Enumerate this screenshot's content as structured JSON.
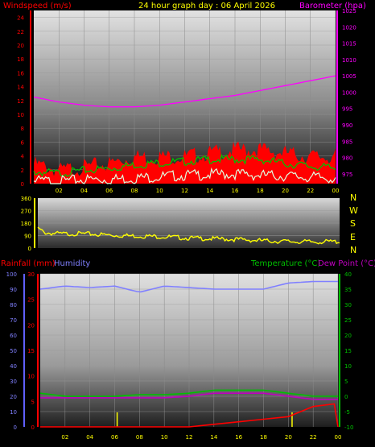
{
  "header": {
    "left_label": "Windspeed (m/s)",
    "title": "24 hour graph day : 06 April 2026",
    "right_label": "Barometer (hpa)"
  },
  "colors": {
    "wind": "#ff0000",
    "gust_fill": "#ff0000",
    "wind_avg": "#00c000",
    "wind_low": "#e0ffe0",
    "baro": "#ff00ff",
    "dir": "#ffff00",
    "rain": "#ff0000",
    "humidity": "#8080ff",
    "temp": "#00c000",
    "dew": "#c000c0",
    "rainrate": "#ffff00"
  },
  "compass": [
    "N",
    "W",
    "S",
    "E",
    "N"
  ],
  "bottom_labels": {
    "rainfall": "Rainfall (mm)",
    "humidity": "Humidity",
    "temperature": "Temperature (°C)",
    "dewpoint": "Dew Point (°C)"
  },
  "chart_data": [
    {
      "type": "line",
      "panel": "wind-baro",
      "x_ticks": [
        "02",
        "04",
        "06",
        "08",
        "10",
        "12",
        "14",
        "16",
        "18",
        "20",
        "22",
        "00"
      ],
      "y_ticks": [
        "0",
        "2",
        "4",
        "6",
        "8",
        "10",
        "12",
        "14",
        "16",
        "18",
        "20",
        "22",
        "24"
      ],
      "ylim": [
        0,
        25
      ],
      "y2_ticks": [
        "975",
        "980",
        "985",
        "990",
        "995",
        "1000",
        "1005",
        "1010",
        "1015",
        "1020",
        "1025"
      ],
      "y2lim": [
        972,
        1025
      ],
      "series": [
        {
          "name": "Windspeed (m/s)",
          "x": [
            0,
            2,
            4,
            6,
            8,
            10,
            12,
            14,
            16,
            18,
            20,
            22,
            24
          ],
          "values": [
            3.5,
            2.5,
            3,
            3.5,
            4.5,
            4.5,
            4.5,
            5,
            5.5,
            5.5,
            5,
            4.5,
            4.5
          ]
        },
        {
          "x": [
            0,
            2,
            4,
            6,
            8,
            10,
            12,
            14,
            16,
            18,
            20,
            22,
            24
          ],
          "values": [
            2,
            1.8,
            2.2,
            2.5,
            3,
            3.3,
            3.5,
            3.8,
            3.8,
            3.8,
            3.2,
            2.8,
            2.5
          ]
        },
        {
          "x": [
            0,
            2,
            4,
            6,
            8,
            10,
            12,
            14,
            16,
            18,
            20,
            22,
            24
          ],
          "values": [
            0.8,
            0.7,
            1,
            1,
            1.2,
            1.4,
            1.6,
            1.7,
            1.8,
            1.6,
            1.5,
            1.3,
            1.2
          ]
        },
        {
          "name": "Barometer (hpa)",
          "x": [
            0,
            2,
            4,
            6,
            8,
            10,
            12,
            14,
            16,
            18,
            20,
            22,
            24
          ],
          "values": [
            998.5,
            997,
            996,
            995.5,
            995.5,
            996,
            997,
            998,
            999,
            1000.5,
            1002,
            1003.5,
            1005
          ]
        }
      ]
    },
    {
      "type": "scatter",
      "panel": "wind-direction",
      "y_ticks": [
        "0",
        "90",
        "180",
        "270",
        "360"
      ],
      "ylim": [
        0,
        360
      ],
      "series": [
        {
          "x": [
            0,
            0.5,
            1,
            2,
            3,
            4,
            5,
            6,
            8,
            10,
            12,
            14,
            16,
            18,
            20,
            22,
            24
          ],
          "values": [
            150,
            120,
            115,
            110,
            112,
            110,
            105,
            100,
            95,
            90,
            80,
            75,
            70,
            60,
            55,
            52,
            55
          ]
        }
      ]
    },
    {
      "type": "line",
      "panel": "rain-humidity-temp",
      "x_ticks": [
        "02",
        "04",
        "06",
        "08",
        "10",
        "12",
        "14",
        "16",
        "18",
        "20",
        "22",
        "00"
      ],
      "y_left_outer_ticks": [
        "0",
        "10",
        "20",
        "30",
        "40",
        "50",
        "60",
        "70",
        "80",
        "90",
        "100"
      ],
      "y_left_inner_ticks": [
        "0",
        "5",
        "10",
        "15",
        "20",
        "25",
        "30"
      ],
      "ylim_humidity": [
        0,
        100
      ],
      "ylim_rain": [
        0,
        30
      ],
      "y_right_ticks": [
        "-10",
        "-5",
        "0",
        "5",
        "10",
        "15",
        "20",
        "25",
        "30",
        "35",
        "40"
      ],
      "ylim_temp": [
        -10,
        40
      ],
      "series": [
        {
          "name": "Humidity",
          "x": [
            0,
            2,
            4,
            6,
            8,
            10,
            12,
            14,
            16,
            18,
            20,
            22,
            24
          ],
          "values": [
            90,
            92,
            91,
            92,
            88,
            92,
            91,
            90,
            90,
            90,
            94,
            95,
            95
          ]
        },
        {
          "name": "Temperature (°C)",
          "x": [
            0,
            2,
            4,
            6,
            8,
            10,
            12,
            14,
            16,
            18,
            20,
            22,
            24
          ],
          "values": [
            1,
            0,
            0,
            0,
            0.5,
            0.5,
            1,
            2,
            2,
            2,
            1,
            0,
            0
          ]
        },
        {
          "name": "Dew Point (°C)",
          "x": [
            0,
            2,
            4,
            6,
            8,
            10,
            12,
            14,
            16,
            18,
            20,
            22,
            24
          ],
          "values": [
            -0.5,
            -0.5,
            -0.5,
            -0.5,
            -0.5,
            -0.5,
            0,
            1,
            1,
            1,
            0,
            -1,
            -1
          ]
        },
        {
          "name": "Rainfall (mm)",
          "x": [
            0,
            2,
            4,
            6,
            8,
            10,
            12,
            14,
            16,
            18,
            20,
            22,
            23.7,
            24
          ],
          "values": [
            0,
            0,
            0,
            0,
            0,
            0,
            0,
            0.5,
            1,
            1.5,
            2,
            4,
            4.5,
            0
          ]
        }
      ]
    }
  ]
}
